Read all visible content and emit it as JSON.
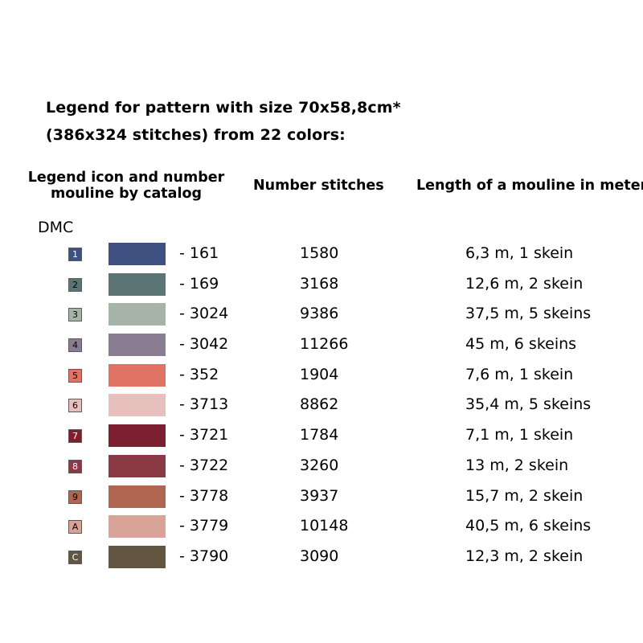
{
  "title": {
    "line1": "Legend for pattern with size 70x58,8cm*",
    "line2": "(386x324 stitches) from 22 colors:"
  },
  "headers": {
    "legend_line1": "Legend icon and number",
    "legend_line2": "mouline by catalog",
    "stitches": "Number stitches",
    "length": "Length of a mouline in meter"
  },
  "brand": "DMC",
  "rows": [
    {
      "icon": "1",
      "icon_color": "#3f5180",
      "icon_text_color": "#ffffff",
      "swatch_color": "#3f5180",
      "number": "- 161",
      "stitches": "1580",
      "length": "6,3 m, 1 skein"
    },
    {
      "icon": "2",
      "icon_color": "#5b7575",
      "icon_text_color": "#000000",
      "swatch_color": "#5b7575",
      "number": "- 169",
      "stitches": "3168",
      "length": "12,6 m, 2 skein"
    },
    {
      "icon": "3",
      "icon_color": "#a6b4a7",
      "icon_text_color": "#000000",
      "swatch_color": "#a6b4a7",
      "number": "- 3024",
      "stitches": "9386",
      "length": "37,5 m, 5 skeins"
    },
    {
      "icon": "4",
      "icon_color": "#8a7c91",
      "icon_text_color": "#000000",
      "swatch_color": "#8a7c91",
      "number": "- 3042",
      "stitches": "11266",
      "length": "45 m, 6 skeins"
    },
    {
      "icon": "5",
      "icon_color": "#e07363",
      "icon_text_color": "#000000",
      "swatch_color": "#e07363",
      "number": "- 352",
      "stitches": "1904",
      "length": "7,6 m, 1 skein"
    },
    {
      "icon": "6",
      "icon_color": "#e7c0bd",
      "icon_text_color": "#000000",
      "swatch_color": "#e7c0bd",
      "number": "- 3713",
      "stitches": "8862",
      "length": "35,4 m, 5 skeins"
    },
    {
      "icon": "7",
      "icon_color": "#7c1f30",
      "icon_text_color": "#ffffff",
      "swatch_color": "#7c1f30",
      "number": "- 3721",
      "stitches": "1784",
      "length": "7,1 m, 1 skein"
    },
    {
      "icon": "8",
      "icon_color": "#8c3946",
      "icon_text_color": "#ffffff",
      "swatch_color": "#8c3946",
      "number": "- 3722",
      "stitches": "3260",
      "length": "13 m, 2 skein"
    },
    {
      "icon": "9",
      "icon_color": "#b06551",
      "icon_text_color": "#000000",
      "swatch_color": "#b06551",
      "number": "- 3778",
      "stitches": "3937",
      "length": "15,7 m, 2 skein"
    },
    {
      "icon": "A",
      "icon_color": "#d9a497",
      "icon_text_color": "#000000",
      "swatch_color": "#d9a497",
      "number": "- 3779",
      "stitches": "10148",
      "length": "40,5 m, 6 skeins"
    },
    {
      "icon": "C",
      "icon_color": "#625641",
      "icon_text_color": "#ffffff",
      "swatch_color": "#625641",
      "number": "- 3790",
      "stitches": "3090",
      "length": "12,3 m, 2 skein"
    }
  ]
}
